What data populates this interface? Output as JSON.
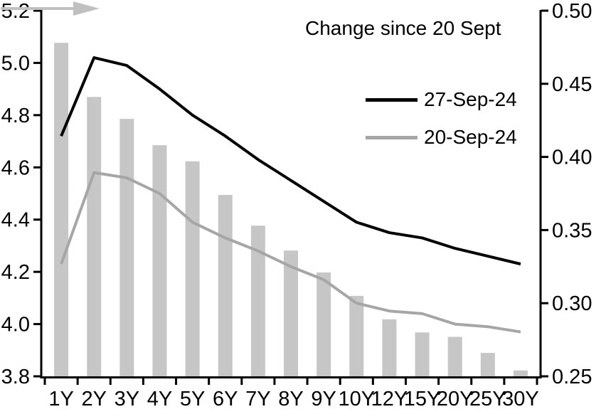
{
  "chart_data": {
    "type": "combo-bar-line",
    "categories": [
      "1Y",
      "2Y",
      "3Y",
      "4Y",
      "5Y",
      "6Y",
      "7Y",
      "8Y",
      "9Y",
      "10Y",
      "12Y",
      "15Y",
      "20Y",
      "25Y",
      "30Y"
    ],
    "series": [
      {
        "name": "Change since 20 Sept",
        "type": "bar",
        "axis": "right",
        "values": [
          0.478,
          0.441,
          0.426,
          0.408,
          0.397,
          0.374,
          0.353,
          0.336,
          0.321,
          0.305,
          0.289,
          0.28,
          0.277,
          0.266,
          0.254
        ]
      },
      {
        "name": "27-Sep-24",
        "type": "line",
        "axis": "left",
        "values": [
          4.72,
          5.02,
          4.99,
          4.9,
          4.8,
          4.72,
          4.63,
          4.55,
          4.47,
          4.39,
          4.35,
          4.33,
          4.29,
          4.26,
          4.23
        ]
      },
      {
        "name": "20-Sep-24",
        "type": "line",
        "axis": "left",
        "values": [
          4.23,
          4.58,
          4.56,
          4.5,
          4.39,
          4.33,
          4.28,
          4.22,
          4.17,
          4.08,
          4.05,
          4.04,
          4.0,
          3.99,
          3.97
        ]
      }
    ],
    "left_axis": {
      "min": 3.8,
      "max": 5.2,
      "tick_labels": [
        "5.2",
        "5.0",
        "4.8",
        "4.6",
        "4.4",
        "4.2",
        "4.0",
        "3.8"
      ]
    },
    "right_axis": {
      "min": 0.25,
      "max": 0.5,
      "tick_labels": [
        "0.50",
        "0.45",
        "0.40",
        "0.35",
        "0.30",
        "0.25"
      ]
    },
    "grid": "off",
    "legend_position": "top-right-inside"
  },
  "legend": {
    "title": "Change since 20 Sept",
    "arrow_icon": "right-arrow",
    "items": [
      {
        "label": "27-Sep-24",
        "color": "#000000"
      },
      {
        "label": "20-Sep-24",
        "color": "#a6a6a6"
      }
    ]
  },
  "colors": {
    "bar": "#c6c6c6",
    "line_current": "#000000",
    "line_previous": "#a6a6a6",
    "arrow": "#c0c0c0",
    "axis": "#000000",
    "background": "#ffffff"
  }
}
